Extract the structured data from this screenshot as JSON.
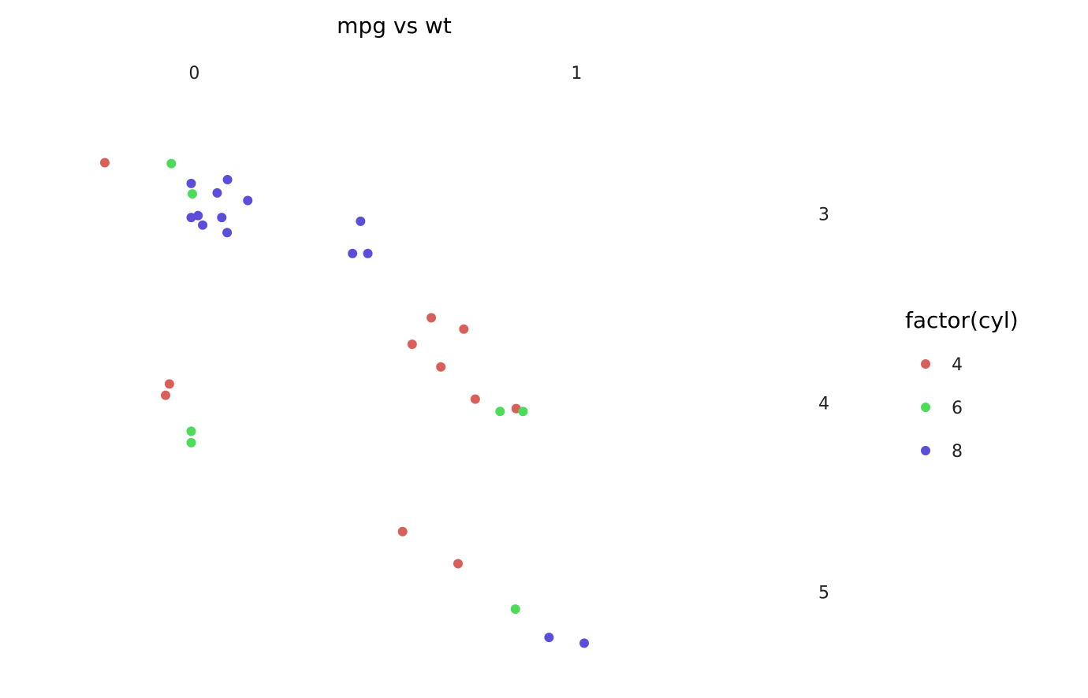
{
  "chart_data": {
    "type": "scatter",
    "title": "mpg vs wt",
    "xlabel": "",
    "ylabel": "",
    "x_ticks": [
      "0",
      "1"
    ],
    "y_ticks": [
      "3",
      "4",
      "5"
    ],
    "x_tick_values": [
      0,
      1
    ],
    "y_tick_values": [
      3,
      4,
      5
    ],
    "xlim": [
      -0.24,
      1.22
    ],
    "ylim": [
      2.37,
      5.41
    ],
    "y_reversed": true,
    "grid": false,
    "legend": {
      "title": "factor(cyl)",
      "placement": "right"
    },
    "colors": {
      "4": "#d95f5a",
      "6": "#4ddc5a",
      "8": "#5b4fd9"
    },
    "series": [
      {
        "name": "4",
        "color": "#d95f5a",
        "points": [
          {
            "x": -0.234,
            "y": 2.73
          },
          {
            "x": -0.065,
            "y": 3.9
          },
          {
            "x": -0.075,
            "y": 3.96
          },
          {
            "x": 0.62,
            "y": 3.55
          },
          {
            "x": 0.57,
            "y": 3.69
          },
          {
            "x": 0.705,
            "y": 3.61
          },
          {
            "x": 0.645,
            "y": 3.81
          },
          {
            "x": 0.735,
            "y": 3.98
          },
          {
            "x": 0.842,
            "y": 4.03
          },
          {
            "x": 0.545,
            "y": 4.68
          },
          {
            "x": 0.69,
            "y": 4.85
          }
        ]
      },
      {
        "name": "6",
        "color": "#4ddc5a",
        "points": [
          {
            "x": -0.06,
            "y": 2.735
          },
          {
            "x": -0.005,
            "y": 2.895
          },
          {
            "x": -0.008,
            "y": 4.15
          },
          {
            "x": -0.008,
            "y": 4.21
          },
          {
            "x": 0.8,
            "y": 4.045
          },
          {
            "x": 0.86,
            "y": 4.045
          },
          {
            "x": 0.84,
            "y": 5.09
          }
        ]
      },
      {
        "name": "8",
        "color": "#5b4fd9",
        "points": [
          {
            "x": -0.008,
            "y": 2.84
          },
          {
            "x": 0.087,
            "y": 2.82
          },
          {
            "x": 0.06,
            "y": 2.89
          },
          {
            "x": 0.14,
            "y": 2.93
          },
          {
            "x": -0.008,
            "y": 3.02
          },
          {
            "x": 0.01,
            "y": 3.01
          },
          {
            "x": 0.022,
            "y": 3.06
          },
          {
            "x": 0.072,
            "y": 3.02
          },
          {
            "x": 0.086,
            "y": 3.1
          },
          {
            "x": 0.435,
            "y": 3.04
          },
          {
            "x": 0.414,
            "y": 3.21
          },
          {
            "x": 0.454,
            "y": 3.21
          },
          {
            "x": 0.928,
            "y": 5.24
          },
          {
            "x": 1.02,
            "y": 5.27
          }
        ]
      }
    ]
  }
}
